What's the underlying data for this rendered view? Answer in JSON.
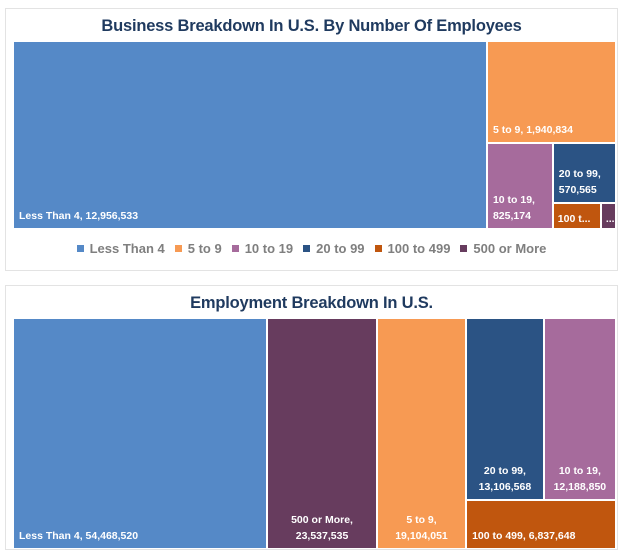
{
  "chart_data": [
    {
      "type": "treemap",
      "title": "Business Breakdown In U.S. By Number Of Employees",
      "legend": {
        "position": "bottom"
      },
      "series": [
        {
          "name": "Less Than 4",
          "value": 12956533,
          "label": "Less Than 4, 12,956,533",
          "color": "#5589c7"
        },
        {
          "name": "5 to 9",
          "value": 1940834,
          "label": "5 to 9, 1,940,834",
          "color": "#f79a53"
        },
        {
          "name": "10 to 19",
          "value": 825174,
          "label": "10 to 19,\n825,174",
          "color": "#a66b9c"
        },
        {
          "name": "20 to 99",
          "value": 570565,
          "label": "20 to 99,\n570,565",
          "color": "#2b5384"
        },
        {
          "name": "100 to 499",
          "value": null,
          "label": "100 t...",
          "color": "#c0560e"
        },
        {
          "name": "500 or More",
          "value": null,
          "label": "...",
          "color": "#673c5e"
        }
      ],
      "legend_entries": [
        "Less Than 4",
        "5 to 9",
        "10 to 19",
        "20 to 99",
        "100 to 499",
        "500 or More"
      ]
    },
    {
      "type": "treemap",
      "title": "Employment Breakdown In U.S.",
      "series": [
        {
          "name": "Less Than 4",
          "value": 54468520,
          "label": "Less Than 4, 54,468,520",
          "color": "#5589c7"
        },
        {
          "name": "500 or More",
          "value": 23537535,
          "label": "500 or More,\n23,537,535",
          "color": "#673c5e"
        },
        {
          "name": "5 to 9",
          "value": 19104051,
          "label": "5 to 9,\n19,104,051",
          "color": "#f79a53"
        },
        {
          "name": "20 to 99",
          "value": 13106568,
          "label": "20 to 99,\n13,106,568",
          "color": "#2b5384"
        },
        {
          "name": "10 to 19",
          "value": 12188850,
          "label": "10 to 19,\n12,188,850",
          "color": "#a66b9c"
        },
        {
          "name": "100 to 499",
          "value": 6837648,
          "label": "100 to 499, 6,837,648",
          "color": "#c0560e"
        }
      ]
    }
  ]
}
